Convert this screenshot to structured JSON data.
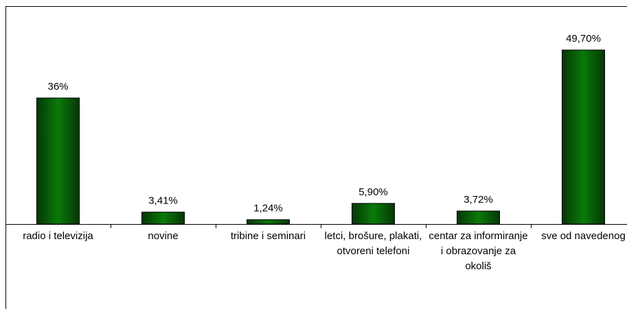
{
  "chart_data": {
    "type": "bar",
    "categories": [
      "radio i televizija",
      "novine",
      "tribine i seminari",
      "letci, brošure, plakati, otvoreni telefoni",
      "centar za informiranje i obrazovanje za okoliš",
      "sve od navedenog"
    ],
    "values": [
      36,
      3.41,
      1.24,
      5.9,
      3.72,
      49.7
    ],
    "value_labels": [
      "36%",
      "3,41%",
      "1,24%",
      "5,90%",
      "3,72%",
      "49,70%"
    ],
    "color": "#0a7a0a"
  }
}
